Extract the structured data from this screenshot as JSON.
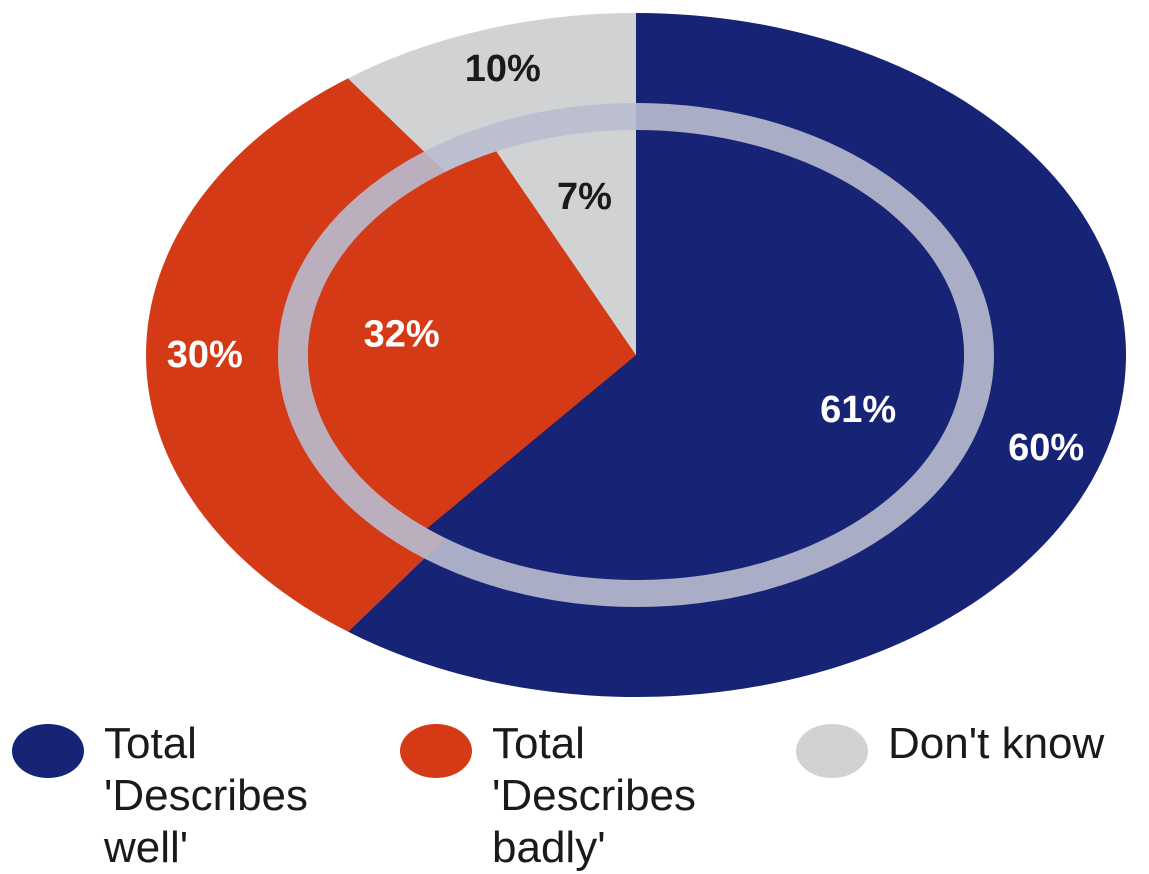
{
  "colors": {
    "well": "#172374",
    "badly": "#D53A16",
    "dontknow": "#D1D2D4",
    "divider": "#B9BCCF"
  },
  "chart_data": {
    "type": "pie",
    "title": "",
    "rings": [
      {
        "name": "",
        "ring": "outer",
        "slices": [
          {
            "label": "Total 'Describes well'",
            "value": 60,
            "display": "60%"
          },
          {
            "label": "Total 'Describes badly'",
            "value": 30,
            "display": "30%"
          },
          {
            "label": "Don't know",
            "value": 10,
            "display": "10%"
          }
        ]
      },
      {
        "name": "",
        "ring": "inner",
        "slices": [
          {
            "label": "Total 'Describes well'",
            "value": 61,
            "display": "61%"
          },
          {
            "label": "Total 'Describes badly'",
            "value": 32,
            "display": "32%"
          },
          {
            "label": "Don't know",
            "value": 7,
            "display": "7%"
          }
        ]
      }
    ],
    "legend": {
      "position": "bottom",
      "entries": [
        "Total\n'Describes\nwell'",
        "Total\n'Describes\nbadly'",
        "Don't know"
      ]
    }
  }
}
